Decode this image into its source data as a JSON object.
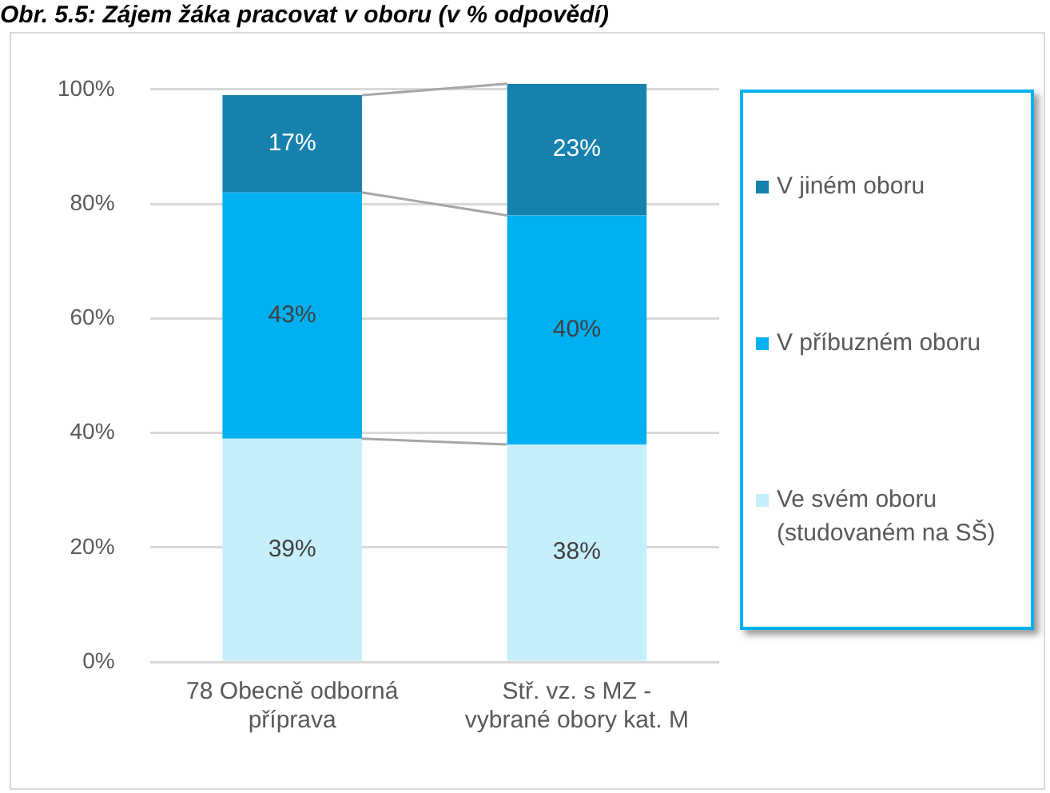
{
  "chart_data": {
    "type": "bar",
    "stacked": true,
    "title": "Obr. 5.5: Zájem žáka pracovat v oboru (v % odpovědí)",
    "categories": [
      "78 Obecně odborná příprava",
      "Stř. vz. s MZ - vybrané obory kat. M"
    ],
    "series": [
      {
        "name": "Ve svém oboru (studovaném na SŠ)",
        "color": "#c6effc",
        "values": [
          39,
          38
        ],
        "value_labels": [
          "39%",
          "38%"
        ]
      },
      {
        "name": "V příbuzném oboru",
        "color": "#00b0f0",
        "values": [
          43,
          40
        ],
        "value_labels": [
          "43%",
          "40%"
        ]
      },
      {
        "name": "V jiném oboru",
        "color": "#1681ad",
        "values": [
          17,
          23
        ],
        "value_labels": [
          "17%",
          "23%"
        ]
      }
    ],
    "ylim": [
      0,
      101
    ],
    "yticks": [
      {
        "value": 0,
        "label": "0%"
      },
      {
        "value": 20,
        "label": "20%"
      },
      {
        "value": 40,
        "label": "40%"
      },
      {
        "value": 60,
        "label": "60%"
      },
      {
        "value": 80,
        "label": "80%"
      },
      {
        "value": 100,
        "label": "100%"
      }
    ],
    "grid": "y",
    "legend": "right"
  }
}
